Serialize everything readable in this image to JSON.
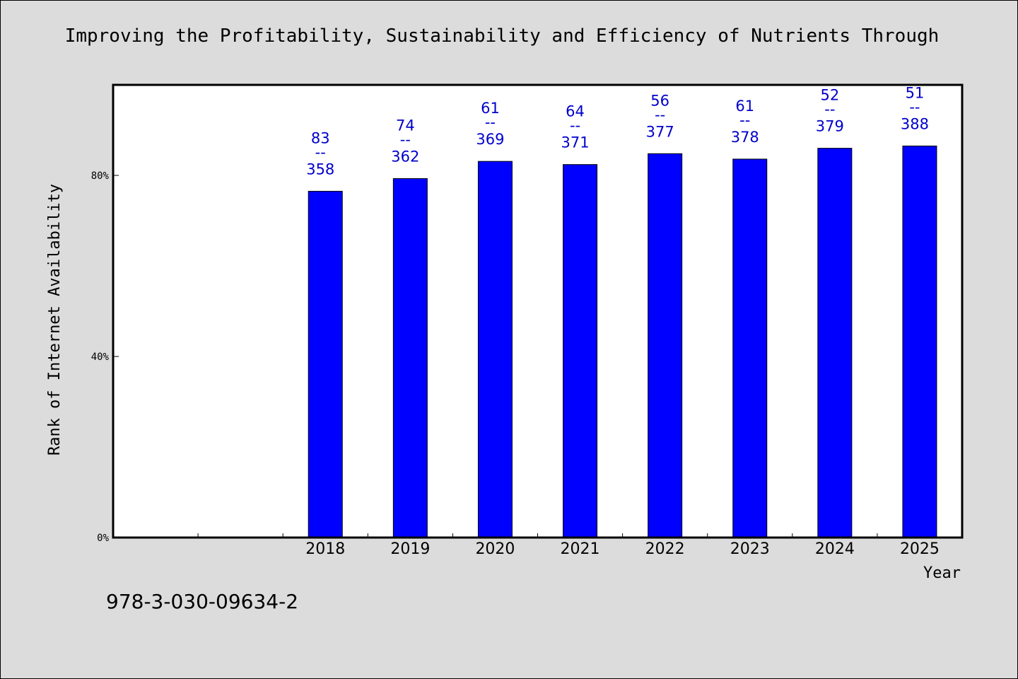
{
  "chart_data": {
    "type": "bar",
    "title": "Improving the Profitability, Sustainability and Efficiency of Nutrients Through",
    "xlabel": "Year",
    "ylabel": "Rank of Internet Availability",
    "categories": [
      "2018",
      "2019",
      "2020",
      "2021",
      "2022",
      "2023",
      "2024",
      "2025"
    ],
    "values": [
      76.5,
      79.3,
      83.1,
      82.4,
      84.8,
      83.6,
      86.0,
      86.5
    ],
    "data_labels": [
      {
        "top": "83",
        "bottom": "358"
      },
      {
        "top": "74",
        "bottom": "362"
      },
      {
        "top": "61",
        "bottom": "369"
      },
      {
        "top": "64",
        "bottom": "371"
      },
      {
        "top": "56",
        "bottom": "377"
      },
      {
        "top": "61",
        "bottom": "378"
      },
      {
        "top": "52",
        "bottom": "379"
      },
      {
        "top": "51",
        "bottom": "388"
      }
    ],
    "label_separator": "--",
    "yticks": [
      0,
      40,
      80
    ],
    "ytick_labels": [
      "0%",
      "40%",
      "80%"
    ],
    "ylim": [
      0,
      100
    ],
    "x_slots": 10,
    "first_category_slot": 2,
    "grid": false,
    "bar_color": "#0000ff",
    "label_color": "#0000cc"
  },
  "footer": {
    "code": "978-3-030-09634-2"
  },
  "colors": {
    "background": "#dcdcdc",
    "plot_background": "#ffffff"
  }
}
